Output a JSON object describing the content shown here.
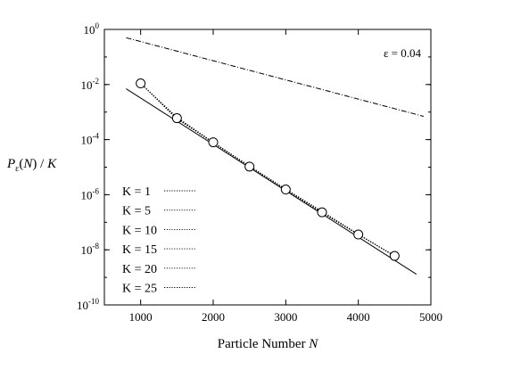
{
  "chart_data": {
    "type": "line",
    "yscale": "log",
    "xlabel": "Particle Number N",
    "ylabel": "Pε(N) / K",
    "xlim": [
      500,
      5000
    ],
    "ylim": [
      1e-10,
      1
    ],
    "xticks": [
      1000,
      2000,
      3000,
      4000,
      5000
    ],
    "xtick_labels": [
      "1000",
      "2000",
      "3000",
      "4000",
      "5000"
    ],
    "yticks": [
      1,
      0.01,
      0.0001,
      1e-06,
      1e-08,
      1e-10
    ],
    "ytick_labels": [
      {
        "base": "10",
        "exp": "0"
      },
      {
        "base": "10",
        "exp": "-2"
      },
      {
        "base": "10",
        "exp": "-4"
      },
      {
        "base": "10",
        "exp": "-6"
      },
      {
        "base": "10",
        "exp": "-8"
      },
      {
        "base": "10",
        "exp": "-10"
      }
    ],
    "annotation": "ε = 0.04",
    "legend_position": "bottom-left",
    "grid": false,
    "series": [
      {
        "name": "K = 1",
        "style": "dotted",
        "x": [
          1000,
          1500,
          2000,
          2500,
          3000,
          3500,
          4000,
          4500
        ],
        "y": [
          0.011,
          0.00055,
          8e-05,
          1.1e-05,
          1.6e-06,
          2.5e-07,
          3.7e-08,
          6e-09
        ]
      },
      {
        "name": "K = 5",
        "style": "dotted",
        "x": [
          1000,
          1500,
          2000,
          2500,
          3000,
          3500,
          4000,
          4500
        ],
        "y": [
          0.011,
          0.0006,
          7.5e-05,
          1.05e-05,
          1.55e-06,
          2.3e-07,
          3.6e-08,
          6e-09
        ]
      },
      {
        "name": "K = 10",
        "style": "dotted",
        "x": [
          1000,
          1500,
          2000,
          2500,
          3000,
          3500,
          4000,
          4500
        ],
        "y": [
          0.011,
          0.00065,
          8e-05,
          1.05e-05,
          1.5e-06,
          2.2e-07,
          3.6e-08,
          6e-09
        ]
      },
      {
        "name": "K = 15",
        "style": "dotted",
        "x": [
          1000,
          1500,
          2000,
          2500,
          3000,
          3500,
          4000,
          4500
        ],
        "y": [
          0.011,
          0.0006,
          7.8e-05,
          1.05e-05,
          1.55e-06,
          2.2e-07,
          3.6e-08,
          6e-09
        ]
      },
      {
        "name": "K = 20",
        "style": "dotted",
        "x": [
          1000,
          1500,
          2000,
          2500,
          3000,
          3500,
          4000,
          4500
        ],
        "y": [
          0.011,
          0.00062,
          7.8e-05,
          1.05e-05,
          1.55e-06,
          2.25e-07,
          3.6e-08,
          6e-09
        ]
      },
      {
        "name": "K = 25",
        "style": "dotted",
        "x": [
          1000,
          1500,
          2000,
          2500,
          3000,
          3500,
          4000,
          4500
        ],
        "y": [
          0.011,
          0.0006,
          8e-05,
          1.05e-05,
          1.55e-06,
          2.3e-07,
          3.6e-08,
          6e-09
        ]
      }
    ],
    "markers": {
      "style": "open-circle",
      "x": [
        1000,
        1500,
        2000,
        2500,
        3000,
        3500,
        4000,
        4500
      ],
      "y": [
        0.011,
        0.0006,
        8e-05,
        1.05e-05,
        1.55e-06,
        2.3e-07,
        3.6e-08,
        6e-09
      ]
    },
    "reference_lines": [
      {
        "style": "solid",
        "x": [
          800,
          4800
        ],
        "y": [
          0.007,
          1.3e-09
        ]
      },
      {
        "style": "dashdot",
        "x": [
          800,
          4900
        ],
        "y": [
          0.5,
          0.0007
        ]
      }
    ]
  }
}
